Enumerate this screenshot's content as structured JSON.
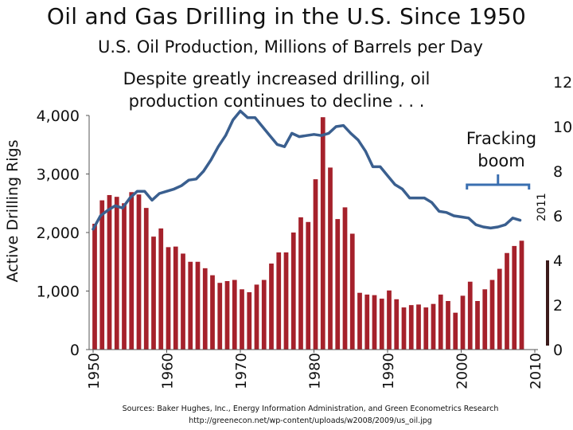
{
  "page": {
    "annotation_lines": [
      "Despite greatly increased drilling, oil",
      "production continues to decline . . ."
    ],
    "fracking_lines": [
      "Fracking",
      "boom"
    ],
    "sources_lines": [
      "Sources: Baker Hughes, Inc., Energy Information Administration, and Green Econometrics Research",
      "http://greenecon.net/wp-content/uploads/w2008/2009/us_oil.jpg"
    ]
  },
  "colors": {
    "bars": "#a5212b",
    "line": "#3a5f8f",
    "bracket": "#3a6fb0",
    "axis": "#555555"
  },
  "chart_data": {
    "type": "bar",
    "title": "Oil and Gas Drilling in the U.S. Since 1950",
    "subtitle": "U.S. Oil Production, Millions of Barrels per Day",
    "ylabel": "Active Drilling Rigs",
    "ylim": [
      0,
      4000
    ],
    "y_ticks": [
      0,
      1000,
      2000,
      3000,
      4000
    ],
    "y_tick_labels": [
      "0",
      "1,000",
      "2,000",
      "3,000",
      "4,000"
    ],
    "y2lim": [
      0,
      12
    ],
    "y2_ticks": [
      0,
      2,
      4,
      6,
      8,
      10,
      12
    ],
    "x_ticks": [
      1950,
      1960,
      1970,
      1980,
      1990,
      2000,
      2010
    ],
    "x_tick_labels": [
      "1950",
      "1960",
      "1970",
      "1980",
      "1990",
      "2000",
      "2010"
    ],
    "bracket_label": "2011",
    "bracket_range": [
      2001,
      2009
    ],
    "series": [
      {
        "name": "Active Drilling Rigs",
        "type": "bar",
        "axis": "left",
        "x": [
          1950,
          1951,
          1952,
          1953,
          1954,
          1955,
          1956,
          1957,
          1958,
          1959,
          1960,
          1961,
          1962,
          1963,
          1964,
          1965,
          1966,
          1967,
          1968,
          1969,
          1970,
          1971,
          1972,
          1973,
          1974,
          1975,
          1976,
          1977,
          1978,
          1979,
          1980,
          1981,
          1982,
          1983,
          1984,
          1985,
          1986,
          1987,
          1988,
          1989,
          1990,
          1991,
          1992,
          1993,
          1994,
          1995,
          1996,
          1997,
          1998,
          1999,
          2000,
          2001,
          2002,
          2003,
          2004,
          2005,
          2006,
          2007,
          2008
        ],
        "values": [
          2150,
          2550,
          2640,
          2610,
          2500,
          2690,
          2650,
          2420,
          1930,
          2070,
          1750,
          1760,
          1640,
          1500,
          1500,
          1390,
          1270,
          1140,
          1170,
          1190,
          1030,
          980,
          1110,
          1190,
          1470,
          1660,
          1660,
          2000,
          2260,
          2180,
          2910,
          3970,
          3110,
          2230,
          2430,
          1980,
          970,
          940,
          930,
          870,
          1010,
          860,
          720,
          760,
          770,
          720,
          780,
          940,
          830,
          630,
          920,
          1160,
          830,
          1030,
          1190,
          1380,
          1650,
          1770,
          1860
        ]
      },
      {
        "name": "U.S. Oil Production, Millions of Barrels per Day",
        "type": "line",
        "axis": "right",
        "x": [
          1950,
          1951,
          1952,
          1953,
          1954,
          1955,
          1956,
          1957,
          1958,
          1959,
          1960,
          1961,
          1962,
          1963,
          1964,
          1965,
          1966,
          1967,
          1968,
          1969,
          1970,
          1971,
          1972,
          1973,
          1974,
          1975,
          1976,
          1977,
          1978,
          1979,
          1980,
          1981,
          1982,
          1983,
          1984,
          1985,
          1986,
          1987,
          1988,
          1989,
          1990,
          1991,
          1992,
          1993,
          1994,
          1995,
          1996,
          1997,
          1998,
          1999,
          2000,
          2001,
          2002,
          2003,
          2004,
          2005,
          2006,
          2007,
          2008
        ],
        "values": [
          5.4,
          6.0,
          6.25,
          6.45,
          6.35,
          6.8,
          7.1,
          7.1,
          6.7,
          7.0,
          7.1,
          7.2,
          7.35,
          7.6,
          7.65,
          8.0,
          8.5,
          9.1,
          9.6,
          10.3,
          10.7,
          10.4,
          10.4,
          10.0,
          9.6,
          9.2,
          9.1,
          9.7,
          9.55,
          9.6,
          9.65,
          9.6,
          9.7,
          10.0,
          10.05,
          9.7,
          9.4,
          8.9,
          8.2,
          8.2,
          7.8,
          7.4,
          7.2,
          6.8,
          6.8,
          6.8,
          6.6,
          6.2,
          6.15,
          6.0,
          5.95,
          5.9,
          5.6,
          5.5,
          5.45,
          5.5,
          5.6,
          5.9,
          5.8
        ]
      }
    ]
  }
}
